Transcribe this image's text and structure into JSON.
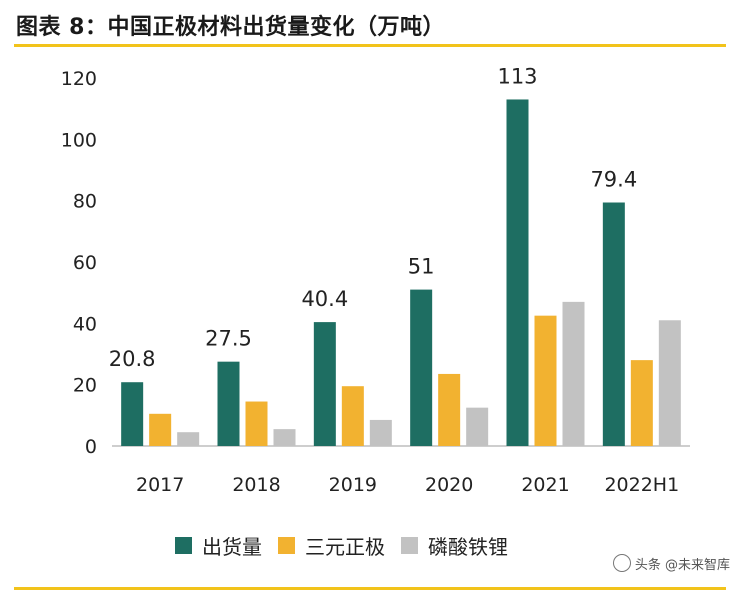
{
  "title": "图表 8：中国正极材料出货量变化（万吨）",
  "watermark": {
    "line1": "未来智库",
    "line2": "头条 @未来智库",
    "icon": "wechat-icon"
  },
  "colors": {
    "accent_rule": "#f2c31a"
  },
  "chart_data": {
    "type": "bar",
    "categories": [
      "2017",
      "2018",
      "2019",
      "2020",
      "2021",
      "2022H1"
    ],
    "series": [
      {
        "name": "出货量",
        "color": "#1e6e62",
        "values": [
          20.8,
          27.5,
          40.4,
          51,
          113,
          79.4
        ]
      },
      {
        "name": "三元正极",
        "color": "#f2b230",
        "values": [
          10.5,
          14.5,
          19.5,
          23.5,
          42.5,
          28
        ]
      },
      {
        "name": "磷酸铁锂",
        "color": "#c2c2c2",
        "values": [
          4.5,
          5.5,
          8.5,
          12.5,
          47,
          41
        ]
      }
    ],
    "data_labels": [
      "20.8",
      "27.5",
      "40.4",
      "51",
      "113",
      "79.4"
    ],
    "yticks": [
      "0",
      "20",
      "40",
      "60",
      "80",
      "100",
      "120"
    ],
    "ylim": [
      0,
      120
    ],
    "grid": false,
    "legend_position": "bottom"
  }
}
